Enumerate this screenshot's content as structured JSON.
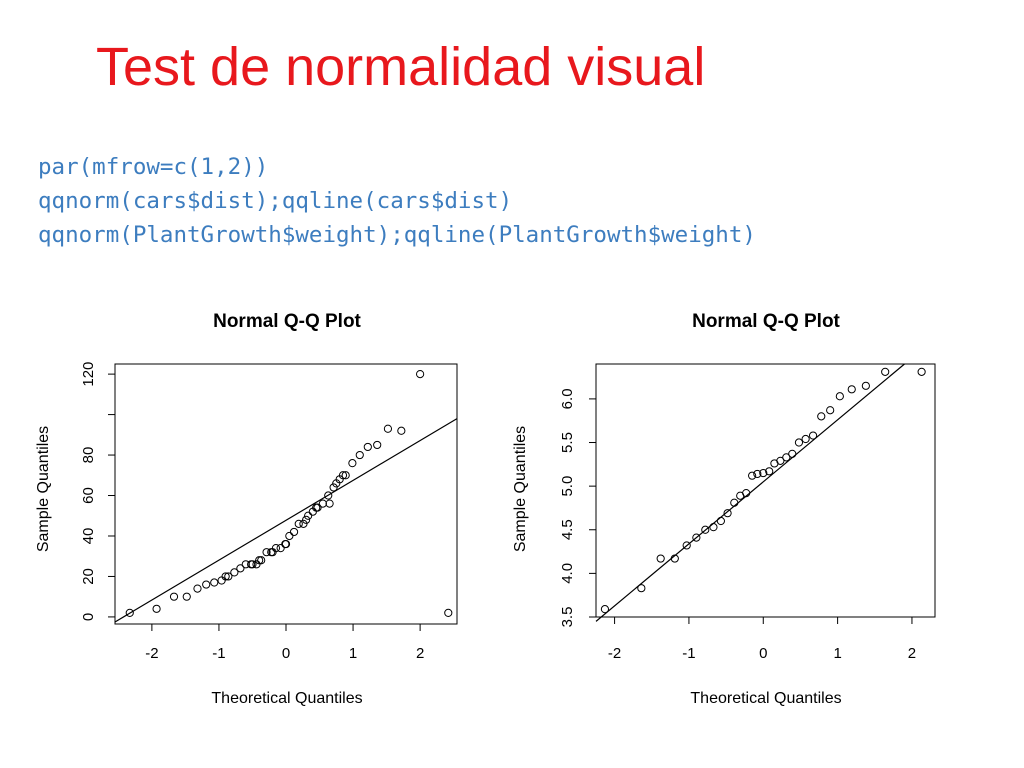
{
  "slide": {
    "title": "Test de normalidad visual",
    "code": [
      "par(mfrow=c(1,2))",
      "qqnorm(cars$dist);qqline(cars$dist)",
      "qqnorm(PlantGrowth$weight);qqline(PlantGrowth$weight)"
    ]
  },
  "chart_data": [
    {
      "type": "scatter",
      "title": "Normal Q-Q Plot",
      "xlabel": "Theoretical Quantiles",
      "ylabel": "Sample Quantiles",
      "xlim": [
        -2.55,
        2.55
      ],
      "ylim": [
        -3.5,
        125
      ],
      "xticks": [
        -2,
        -1,
        0,
        1,
        2
      ],
      "xtick_labels": [
        "-2",
        "-1",
        "0",
        "1",
        "2"
      ],
      "yticks": [
        0,
        20,
        40,
        60,
        80,
        100,
        120
      ],
      "ytick_labels": [
        "0",
        "20",
        "40",
        "60",
        "80",
        "",
        "120"
      ],
      "x": [
        -2.33,
        -1.93,
        -1.67,
        -1.48,
        -1.32,
        -1.19,
        -1.07,
        -0.96,
        -0.86,
        -0.77,
        -0.68,
        -0.6,
        -0.52,
        -0.44,
        -0.37,
        -0.29,
        -0.22,
        -0.15,
        -0.08,
        -0.01,
        0.05,
        0.12,
        0.19,
        0.26,
        0.33,
        0.4,
        0.47,
        0.55,
        0.63,
        0.71,
        0.8,
        0.89,
        0.99,
        1.1,
        1.22,
        1.36,
        1.52,
        1.72,
        2.0,
        2.42,
        -0.9,
        -0.5,
        -0.4,
        -0.2,
        0.0,
        0.3,
        0.45,
        0.65,
        0.75,
        0.85
      ],
      "y": [
        2,
        4,
        10,
        10,
        14,
        16,
        17,
        18,
        20,
        22,
        24,
        26,
        26,
        26,
        28,
        32,
        32,
        34,
        34,
        36,
        40,
        42,
        46,
        46,
        50,
        52,
        54,
        56,
        60,
        64,
        68,
        70,
        76,
        80,
        84,
        85,
        93,
        92,
        120,
        2,
        20,
        26,
        28,
        32,
        36,
        48,
        54,
        56,
        66,
        70
      ],
      "line": {
        "from": [
          -2.55,
          -2.5
        ],
        "to": [
          2.55,
          98
        ]
      }
    },
    {
      "type": "scatter",
      "title": "Normal Q-Q Plot",
      "xlabel": "Theoretical Quantiles",
      "ylabel": "Sample Quantiles",
      "xlim": [
        -2.25,
        2.31
      ],
      "ylim": [
        3.5,
        6.4
      ],
      "xticks": [
        -2,
        -1,
        0,
        1,
        2
      ],
      "xtick_labels": [
        "-2",
        "-1",
        "0",
        "1",
        "2"
      ],
      "yticks": [
        3.5,
        4.0,
        4.5,
        5.0,
        5.5,
        6.0
      ],
      "ytick_labels": [
        "3.5",
        "4.0",
        "4.5",
        "5.0",
        "5.5",
        "6.0"
      ],
      "x": [
        -2.13,
        -1.64,
        -1.38,
        -1.19,
        -1.03,
        -0.9,
        -0.78,
        -0.67,
        -0.57,
        -0.48,
        -0.39,
        -0.31,
        -0.23,
        -0.15,
        -0.08,
        0.0,
        0.08,
        0.15,
        0.23,
        0.31,
        0.39,
        0.48,
        0.57,
        0.67,
        0.78,
        0.9,
        1.03,
        1.19,
        1.38,
        1.64,
        2.13
      ],
      "y": [
        3.59,
        3.83,
        4.17,
        4.17,
        4.32,
        4.41,
        4.5,
        4.53,
        4.6,
        4.69,
        4.81,
        4.89,
        4.92,
        5.12,
        5.14,
        5.15,
        5.17,
        5.26,
        5.29,
        5.33,
        5.37,
        5.5,
        5.54,
        5.58,
        5.8,
        5.87,
        6.03,
        6.11,
        6.15,
        6.31,
        6.31
      ],
      "line": {
        "from": [
          -2.25,
          3.45
        ],
        "to": [
          1.9,
          6.4
        ]
      }
    }
  ]
}
